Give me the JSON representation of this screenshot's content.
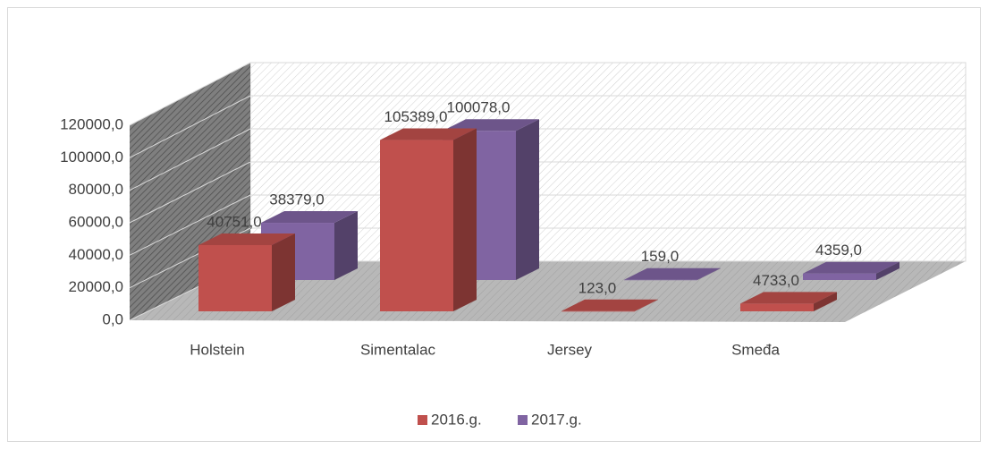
{
  "chart_data": {
    "type": "bar3d",
    "categories": [
      "Holstein",
      "Simentalac",
      "Jersey",
      "Smeđa"
    ],
    "series": [
      {
        "name": "2016.g.",
        "color": "#c0504d",
        "values": [
          40751,
          105389,
          123,
          4733
        ],
        "value_labels": [
          "40751,0",
          "105389,0",
          "123,0",
          "4733,0"
        ]
      },
      {
        "name": "2017.g.",
        "color": "#8064a2",
        "values": [
          38379,
          100078,
          159,
          4359
        ],
        "value_labels": [
          "38379,0",
          "100078,0",
          "159,0",
          "4359,0"
        ]
      }
    ],
    "ylim": [
      0,
      120000
    ],
    "yticks": [
      {
        "value": 0,
        "label": "0,0"
      },
      {
        "value": 20000,
        "label": "20000,0"
      },
      {
        "value": 40000,
        "label": "40000,0"
      },
      {
        "value": 60000,
        "label": "60000,0"
      },
      {
        "value": 80000,
        "label": "80000,0"
      },
      {
        "value": 100000,
        "label": "100000,0"
      },
      {
        "value": 120000,
        "label": "120000,0"
      }
    ],
    "grid": true
  }
}
